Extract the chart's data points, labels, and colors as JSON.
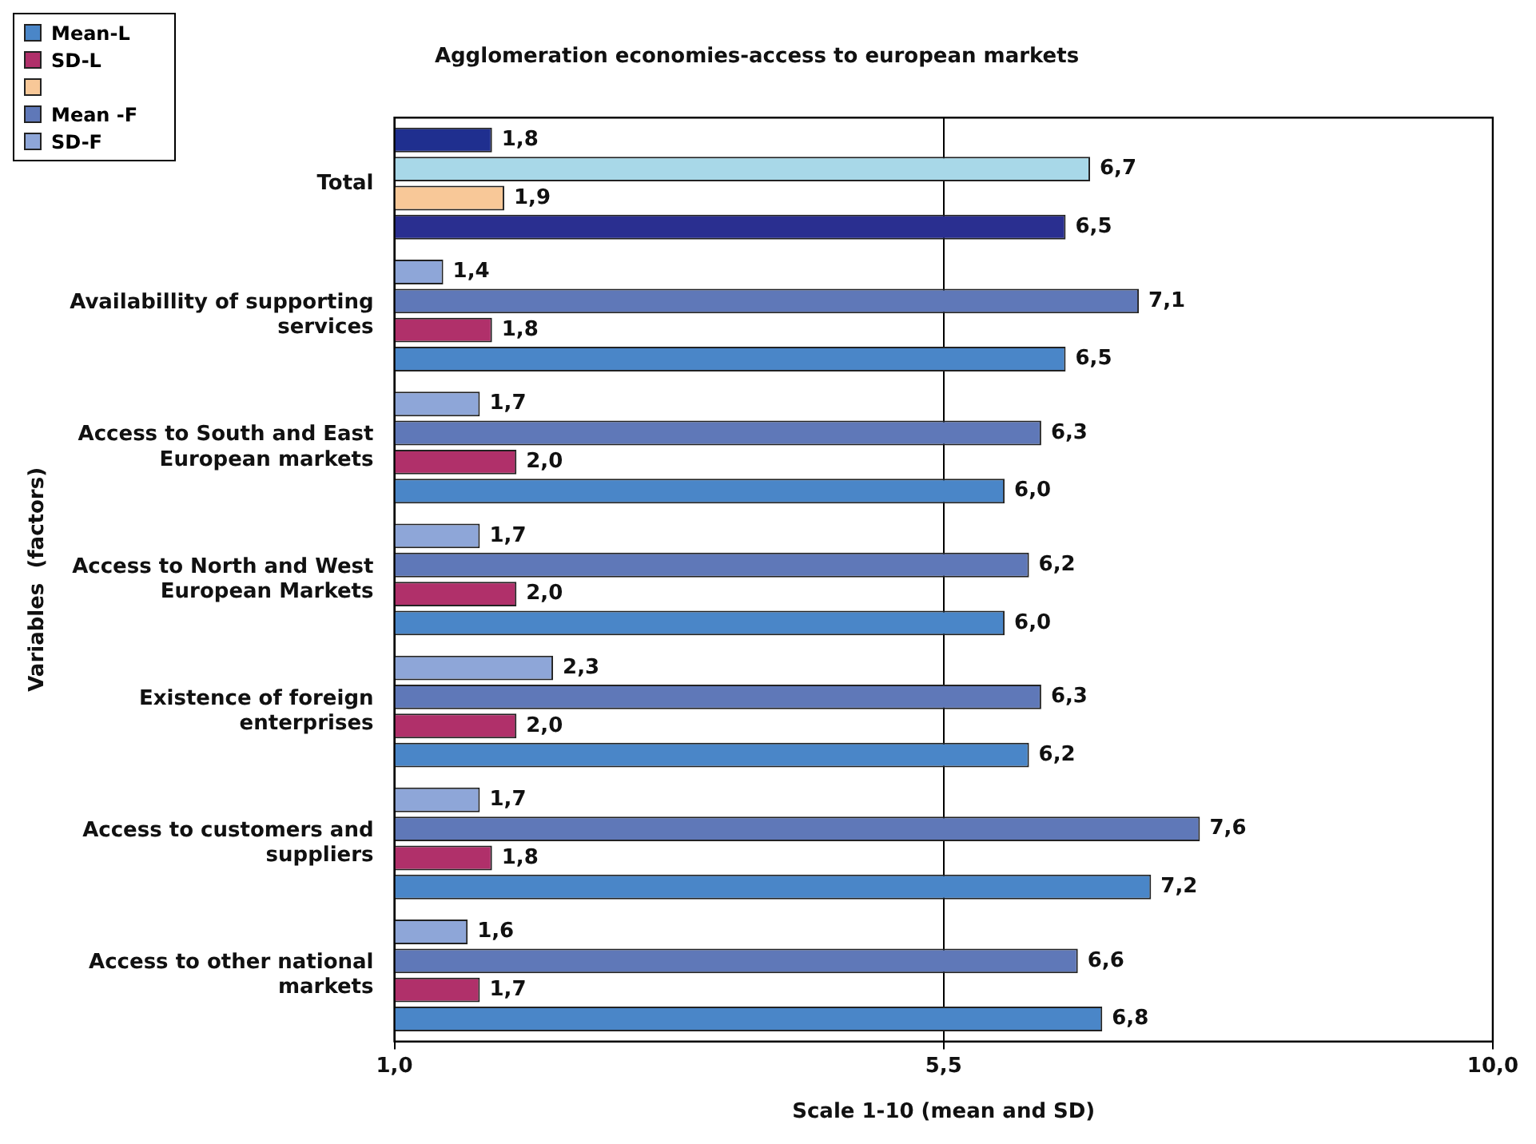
{
  "chart_data": {
    "type": "bar",
    "orientation": "horizontal",
    "title": "Agglomeration economies-access to european markets",
    "xlabel": "Scale 1-10 (mean and SD)",
    "ylabel": "Variables  (factors)",
    "categories": [
      "Total",
      "Availabillity of supporting services",
      "Access to South and East European markets",
      "Access to North and West European Markets",
      "Existence of foreign enterprises",
      "Access to customers and suppliers",
      "Access to other national markets"
    ],
    "series": [
      {
        "name": "SD-F",
        "color": "#8ea6d8",
        "colors": [
          "#1f2f8f",
          "#8ea6d8",
          "#8ea6d8",
          "#8ea6d8",
          "#8ea6d8",
          "#8ea6d8",
          "#8ea6d8"
        ],
        "values": [
          1.8,
          1.4,
          1.7,
          1.7,
          2.3,
          1.7,
          1.6
        ],
        "value_labels": [
          "1,8",
          "1,4",
          "1,7",
          "1,7",
          "2,3",
          "1,7",
          "1,6"
        ]
      },
      {
        "name": "Mean -F",
        "color": "#5f78b8",
        "colors": [
          "#a8d8e8",
          "#5f78b8",
          "#5f78b8",
          "#5f78b8",
          "#5f78b8",
          "#5f78b8",
          "#5f78b8"
        ],
        "values": [
          6.7,
          7.1,
          6.3,
          6.2,
          6.3,
          7.6,
          6.6
        ],
        "value_labels": [
          "6,7",
          "7,1",
          "6,3",
          "6,2",
          "6,3",
          "7,6",
          "6,6"
        ]
      },
      {
        "color": "#f8c898",
        "values": [
          1.9,
          null,
          null,
          null,
          null,
          null,
          null
        ],
        "value_labels": [
          "1,9",
          null,
          null,
          null,
          null,
          null,
          null
        ]
      },
      {
        "name": "SD-L",
        "color": "#b0306a",
        "values": [
          null,
          1.8,
          2.0,
          2.0,
          2.0,
          1.8,
          1.7
        ],
        "value_labels": [
          null,
          "1,8",
          "2,0",
          "2,0",
          "2,0",
          "1,8",
          "1,7"
        ]
      },
      {
        "name": "Mean-L",
        "color": "#4a86c8",
        "colors": [
          "#2a2f90",
          "#4a86c8",
          "#4a86c8",
          "#4a86c8",
          "#4a86c8",
          "#4a86c8",
          "#4a86c8"
        ],
        "values": [
          6.5,
          6.5,
          6.0,
          6.0,
          6.2,
          7.2,
          6.8
        ],
        "value_labels": [
          "6,5",
          "6,5",
          "6,0",
          "6,0",
          "6,2",
          "7,2",
          "6,8"
        ]
      }
    ],
    "xlim": [
      1,
      10
    ],
    "xticks": [
      {
        "value": 1,
        "label": "1,0"
      },
      {
        "value": 5.5,
        "label": "5,5"
      },
      {
        "value": 10,
        "label": "10,0"
      }
    ],
    "grid": "x",
    "legend": "top left"
  }
}
